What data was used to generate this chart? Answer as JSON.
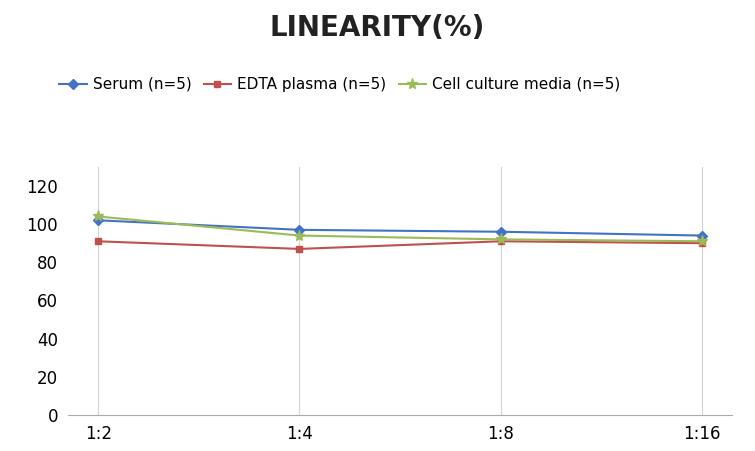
{
  "title": "LINEARITY(%)",
  "x_labels": [
    "1:2",
    "1:4",
    "1:8",
    "1:16"
  ],
  "x_positions": [
    0,
    1,
    2,
    3
  ],
  "series": [
    {
      "label": "Serum (n=5)",
      "values": [
        102,
        97,
        96,
        94
      ],
      "color": "#4472C4",
      "marker": "D",
      "markersize": 5
    },
    {
      "label": "EDTA plasma (n=5)",
      "values": [
        91,
        87,
        91,
        90
      ],
      "color": "#C0504D",
      "marker": "s",
      "markersize": 5
    },
    {
      "label": "Cell culture media (n=5)",
      "values": [
        104,
        94,
        92,
        91
      ],
      "color": "#9BBB59",
      "marker": "*",
      "markersize": 8
    }
  ],
  "ylim": [
    0,
    130
  ],
  "yticks": [
    0,
    20,
    40,
    60,
    80,
    100,
    120
  ],
  "background_color": "#FFFFFF",
  "grid_color": "#D3D3D3",
  "title_fontsize": 20,
  "legend_fontsize": 11,
  "tick_fontsize": 12
}
